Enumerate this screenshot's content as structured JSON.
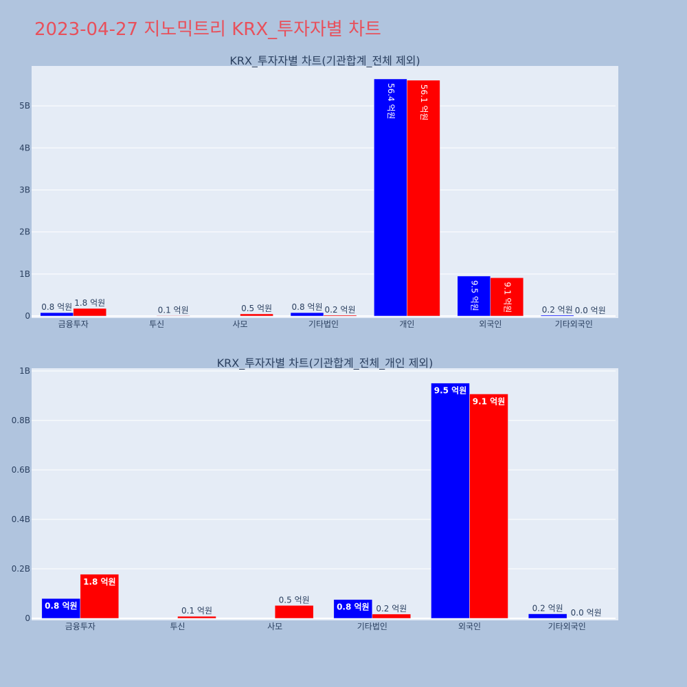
{
  "title": "2023-04-27 지노믹트리 KRX_투자자별 차트",
  "colors": {
    "series1": "#0000ff",
    "series2": "#ff0000",
    "plot_bg": "#e5ecf6",
    "paper_bg": "#b0c4de",
    "title": "#e8505b"
  },
  "chart_data": [
    {
      "type": "bar",
      "title": "KRX_투자자별 차트(기관합계_전체 제외)",
      "categories": [
        "금융투자",
        "투신",
        "사모",
        "기타법인",
        "개인",
        "외국인",
        "기타외국인"
      ],
      "series": [
        {
          "values": [
            0.08,
            0,
            0,
            0.08,
            5.64,
            0.95,
            0.02
          ],
          "labels": [
            "0.8 억원",
            "",
            "",
            "0.8 억원",
            "56.4 억원",
            "9.5 억원",
            "0.2 억원"
          ]
        },
        {
          "values": [
            0.18,
            0.01,
            0.05,
            0.02,
            5.61,
            0.91,
            0.0
          ],
          "labels": [
            "1.8 억원",
            "0.1 억원",
            "0.5 억원",
            "0.2 억원",
            "56.1 억원",
            "9.1 억원",
            "0.0 억원"
          ]
        }
      ],
      "yticks": [
        "0",
        "1B",
        "2B",
        "3B",
        "4B",
        "5B"
      ],
      "ytick_values": [
        0,
        1,
        2,
        3,
        4,
        5
      ],
      "ylim": [
        0,
        5.95
      ],
      "unit": "billions"
    },
    {
      "type": "bar",
      "title": "KRX_투자자별 차트(기관합계_전체_개인 제외)",
      "categories": [
        "금융투자",
        "투신",
        "사모",
        "기타법인",
        "외국인",
        "기타외국인"
      ],
      "series": [
        {
          "values": [
            0.08,
            0,
            0,
            0.076,
            0.951,
            0.018
          ],
          "labels": [
            "0.8 억원",
            "",
            "",
            "0.8 억원",
            "9.5 억원",
            "0.2 억원"
          ]
        },
        {
          "values": [
            0.178,
            0.008,
            0.052,
            0.017,
            0.907,
            0.0
          ],
          "labels": [
            "1.8 억원",
            "0.1 억원",
            "0.5 억원",
            "0.2 억원",
            "9.1 억원",
            "0.0 억원"
          ]
        }
      ],
      "yticks": [
        "0",
        "0.2B",
        "0.4B",
        "0.6B",
        "0.8B",
        "1B"
      ],
      "ytick_values": [
        0,
        0.2,
        0.4,
        0.6,
        0.8,
        1.0
      ],
      "ylim": [
        0,
        1.0
      ],
      "unit": "billions"
    }
  ]
}
